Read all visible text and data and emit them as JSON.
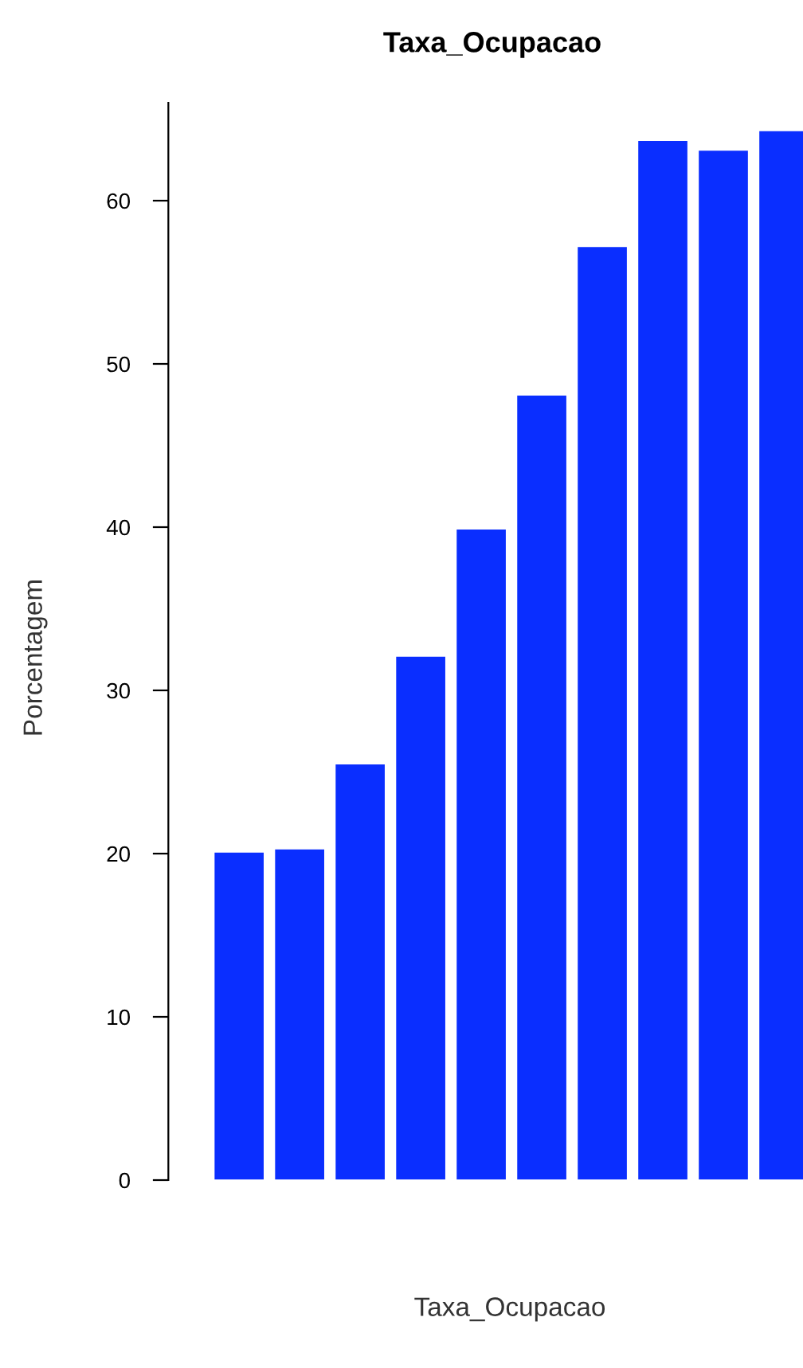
{
  "chart_data": {
    "type": "bar",
    "title": "Taxa_Ocupacao",
    "xlabel": "Taxa_Ocupacao",
    "ylabel": "Porcentagem",
    "categories": [
      null,
      null,
      null,
      null,
      null,
      null,
      null,
      null,
      null,
      null
    ],
    "values": [
      20.1,
      20.3,
      25.5,
      32.1,
      39.9,
      48.1,
      57.2,
      63.7,
      63.1,
      64.3
    ],
    "color": "#0a2eff",
    "ylim": [
      0,
      66
    ],
    "yticks": [
      0,
      10,
      20,
      30,
      40,
      50,
      60
    ],
    "grid": false
  }
}
